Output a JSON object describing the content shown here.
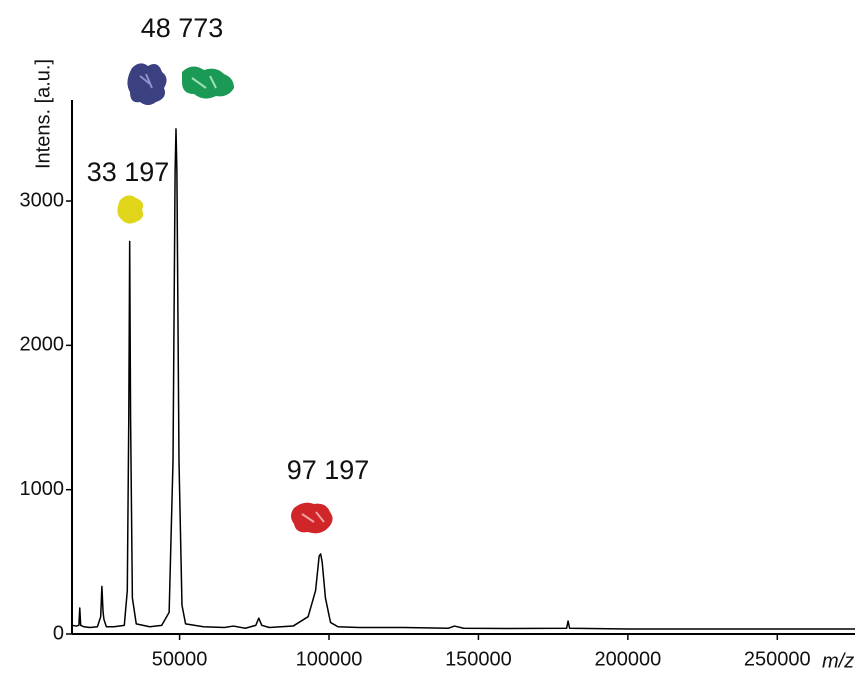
{
  "chart_data": {
    "type": "line",
    "ylabel": "Intens. [a.u.]",
    "xlabel": "m/z",
    "annotations": [
      "48 773",
      "33 197",
      "97 197"
    ],
    "color": "#000000",
    "xlim": [
      14000,
      276000
    ],
    "ylim": [
      0,
      3700
    ],
    "xticks": [
      50000,
      100000,
      150000,
      200000,
      250000
    ],
    "yticks": [
      0,
      1000,
      2000,
      3000
    ],
    "grid": false,
    "x": [
      14000,
      15500,
      16300,
      16600,
      16900,
      18000,
      20000,
      22500,
      23600,
      24000,
      24400,
      24700,
      25500,
      28000,
      31500,
      32500,
      33000,
      33300,
      33600,
      34200,
      35500,
      40000,
      44000,
      46500,
      47800,
      48500,
      48800,
      49100,
      49800,
      50800,
      52000,
      58000,
      65000,
      68000,
      72000,
      75500,
      76500,
      77500,
      80000,
      88000,
      93000,
      95500,
      96700,
      97200,
      97700,
      98800,
      100500,
      103000,
      110000,
      125000,
      140000,
      142000,
      145000,
      160000,
      179500,
      180000,
      180500,
      200000,
      230000,
      250000,
      276000
    ],
    "values": [
      60,
      55,
      60,
      180,
      60,
      50,
      45,
      50,
      120,
      330,
      150,
      100,
      50,
      50,
      60,
      300,
      1500,
      2720,
      1500,
      250,
      70,
      50,
      60,
      150,
      1200,
      3200,
      3500,
      3200,
      1200,
      200,
      70,
      50,
      45,
      55,
      40,
      60,
      110,
      60,
      45,
      55,
      120,
      300,
      540,
      555,
      500,
      250,
      80,
      50,
      45,
      45,
      40,
      55,
      40,
      38,
      40,
      90,
      40,
      35,
      35,
      35,
      35
    ]
  }
}
